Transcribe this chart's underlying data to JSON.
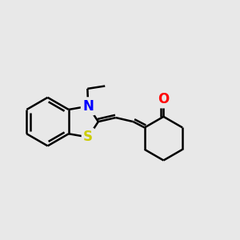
{
  "background_color": "#e8e8e8",
  "atom_colors": {
    "N": "#0000ff",
    "S": "#cccc00",
    "O": "#ff0000",
    "C": "#000000"
  },
  "bond_color": "#000000",
  "bond_width": 1.8,
  "font_size": 12,
  "xlim": [
    -3.2,
    3.8
  ],
  "ylim": [
    -2.5,
    2.5
  ]
}
